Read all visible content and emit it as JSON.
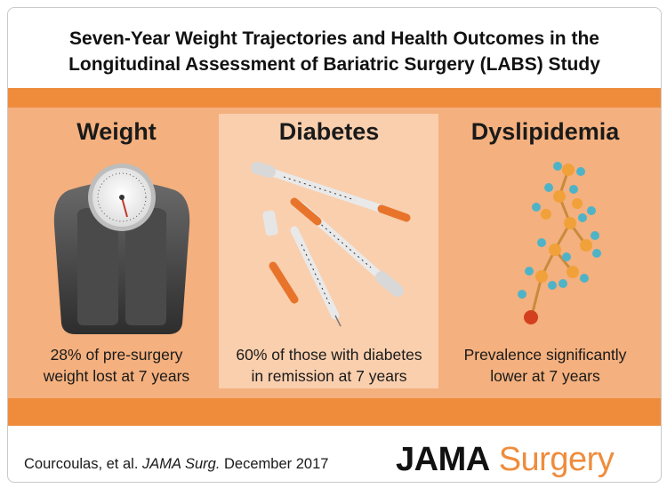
{
  "title": {
    "line1": "Seven-Year Weight Trajectories and Health Outcomes in the",
    "line2": "Longitudinal Assessment of Bariatric Surgery (LABS) Study"
  },
  "panels": [
    {
      "heading": "Weight",
      "caption_line1": "28% of pre-surgery",
      "caption_line2": "weight lost at 7 years",
      "icon": "bathroom-scale-icon"
    },
    {
      "heading": "Diabetes",
      "caption_line1": "60% of those with diabetes",
      "caption_line2": "in remission at 7 years",
      "icon": "insulin-syringes-icon"
    },
    {
      "heading": "Dyslipidemia",
      "caption_line1": "Prevalence significantly",
      "caption_line2": "lower at 7 years",
      "icon": "lipid-molecule-icon"
    }
  ],
  "citation": {
    "authors": "Courcoulas, et al.",
    "journal": "JAMA Surg.",
    "date": "December 2017"
  },
  "brand": {
    "part1": "JAMA",
    "part2": "Surgery"
  },
  "colors": {
    "accent": "#ef8c3c",
    "panel": "#f4b07e",
    "panel_highlight": "#f9cfae"
  }
}
